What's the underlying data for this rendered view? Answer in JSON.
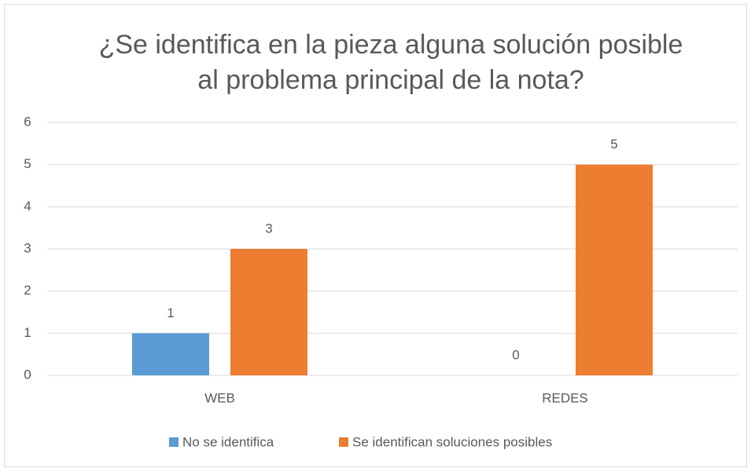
{
  "chart_data": {
    "type": "bar",
    "title": [
      "¿Se identifica en la pieza alguna solución posible",
      "al problema principal de la nota?"
    ],
    "categories": [
      "WEB",
      "REDES"
    ],
    "series": [
      {
        "name": "No se identifica",
        "color": "#5b9bd5",
        "values": [
          1,
          0
        ]
      },
      {
        "name": "Se identifican soluciones posibles",
        "color": "#ed7d31",
        "values": [
          3,
          5
        ]
      }
    ],
    "ylim": [
      0,
      6
    ],
    "yticks": [
      0,
      1,
      2,
      3,
      4,
      5,
      6
    ],
    "grid": true,
    "legend": "bottom"
  }
}
